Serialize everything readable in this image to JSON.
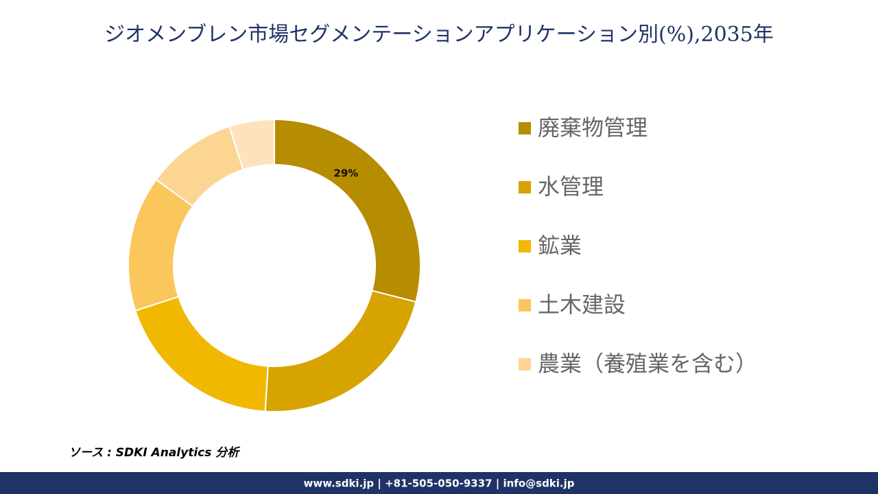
{
  "chart_data": {
    "type": "donut",
    "title": "ジオメンブレン市場セグメンテーションアプリケーション別(%),2035年",
    "categories": [
      "廃棄物管理",
      "水管理",
      "鉱業",
      "土木建設",
      "農業（養殖業を含む）",
      null
    ],
    "values": [
      29,
      22,
      19,
      15,
      10,
      5
    ],
    "value_labels": [
      "29%",
      null,
      null,
      null,
      null,
      null
    ],
    "colors": [
      "#b68c00",
      "#d6a300",
      "#f0b800",
      "#fbc65c",
      "#fdd593",
      "#fde2bd"
    ],
    "source": "ソース : SDKI Analytics 分析",
    "footer": "www.sdki.jp | +81-505-050-9337 | info@sdki.jp"
  }
}
